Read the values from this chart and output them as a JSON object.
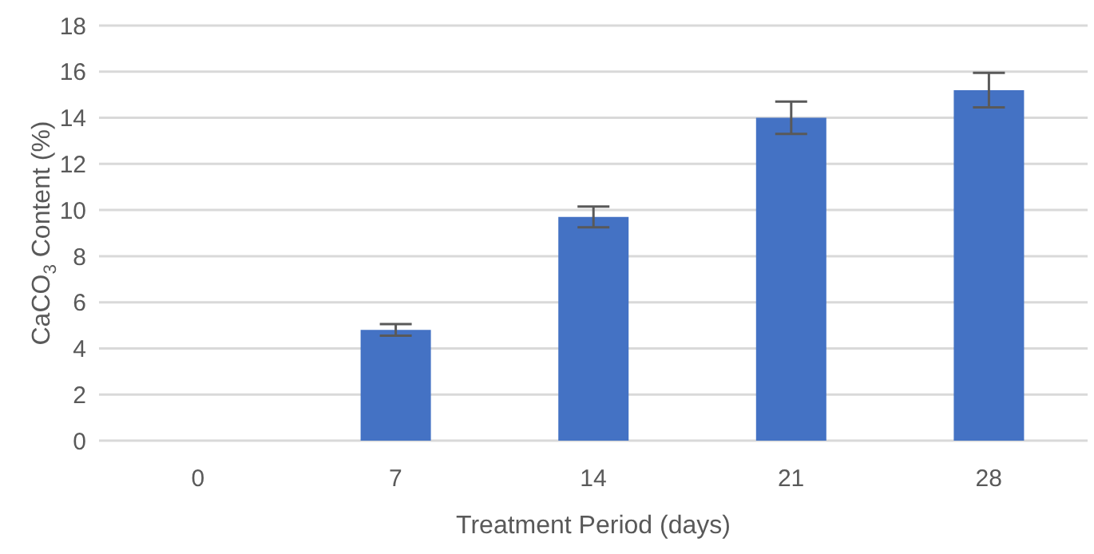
{
  "chart_data": {
    "type": "bar",
    "xlabel": "Treatment Period (days)",
    "ylabel": "CaCO$_{3}$ Content (%)",
    "categories": [
      "0",
      "7",
      "14",
      "21",
      "28"
    ],
    "values": [
      0,
      4.8,
      9.7,
      14.0,
      15.2
    ],
    "errors": [
      0,
      0.25,
      0.45,
      0.7,
      0.75
    ],
    "color": "#4472c4",
    "ylim": [
      0,
      18
    ],
    "yticks": [
      0,
      2,
      4,
      6,
      8,
      10,
      12,
      14,
      16,
      18
    ],
    "grid": "y",
    "legend": false
  }
}
